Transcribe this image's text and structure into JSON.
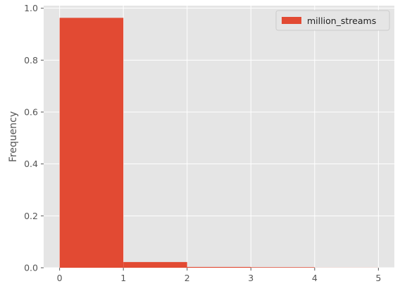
{
  "chart_data": {
    "type": "bar",
    "histogram": true,
    "bins": [
      {
        "x0": 0,
        "x1": 1,
        "value": 0.963
      },
      {
        "x0": 1,
        "x1": 2,
        "value": 0.022
      },
      {
        "x0": 2,
        "x1": 3,
        "value": 0.003
      },
      {
        "x0": 3,
        "x1": 4,
        "value": 0.002
      },
      {
        "x0": 4,
        "x1": 5,
        "value": 0.0003
      }
    ],
    "series": [
      {
        "name": "million_streams"
      }
    ],
    "title": "",
    "xlabel": "",
    "ylabel": "Frequency",
    "xlim": [
      -0.25,
      5.25
    ],
    "ylim": [
      0,
      1.01
    ],
    "xticks": [
      0,
      1,
      2,
      3,
      4,
      5
    ],
    "yticks": [
      0.0,
      0.2,
      0.4,
      0.6,
      0.8,
      1.0
    ],
    "xtick_labels": [
      "0",
      "1",
      "2",
      "3",
      "4",
      "5"
    ],
    "ytick_labels": [
      "0.0",
      "0.2",
      "0.4",
      "0.6",
      "0.8",
      "1.0"
    ],
    "grid": true,
    "legend": {
      "position": "upper-right",
      "entries": [
        "million_streams"
      ]
    },
    "colors": {
      "bar": "#e24a33",
      "background": "#e5e5e5",
      "grid": "#ffffff"
    }
  }
}
